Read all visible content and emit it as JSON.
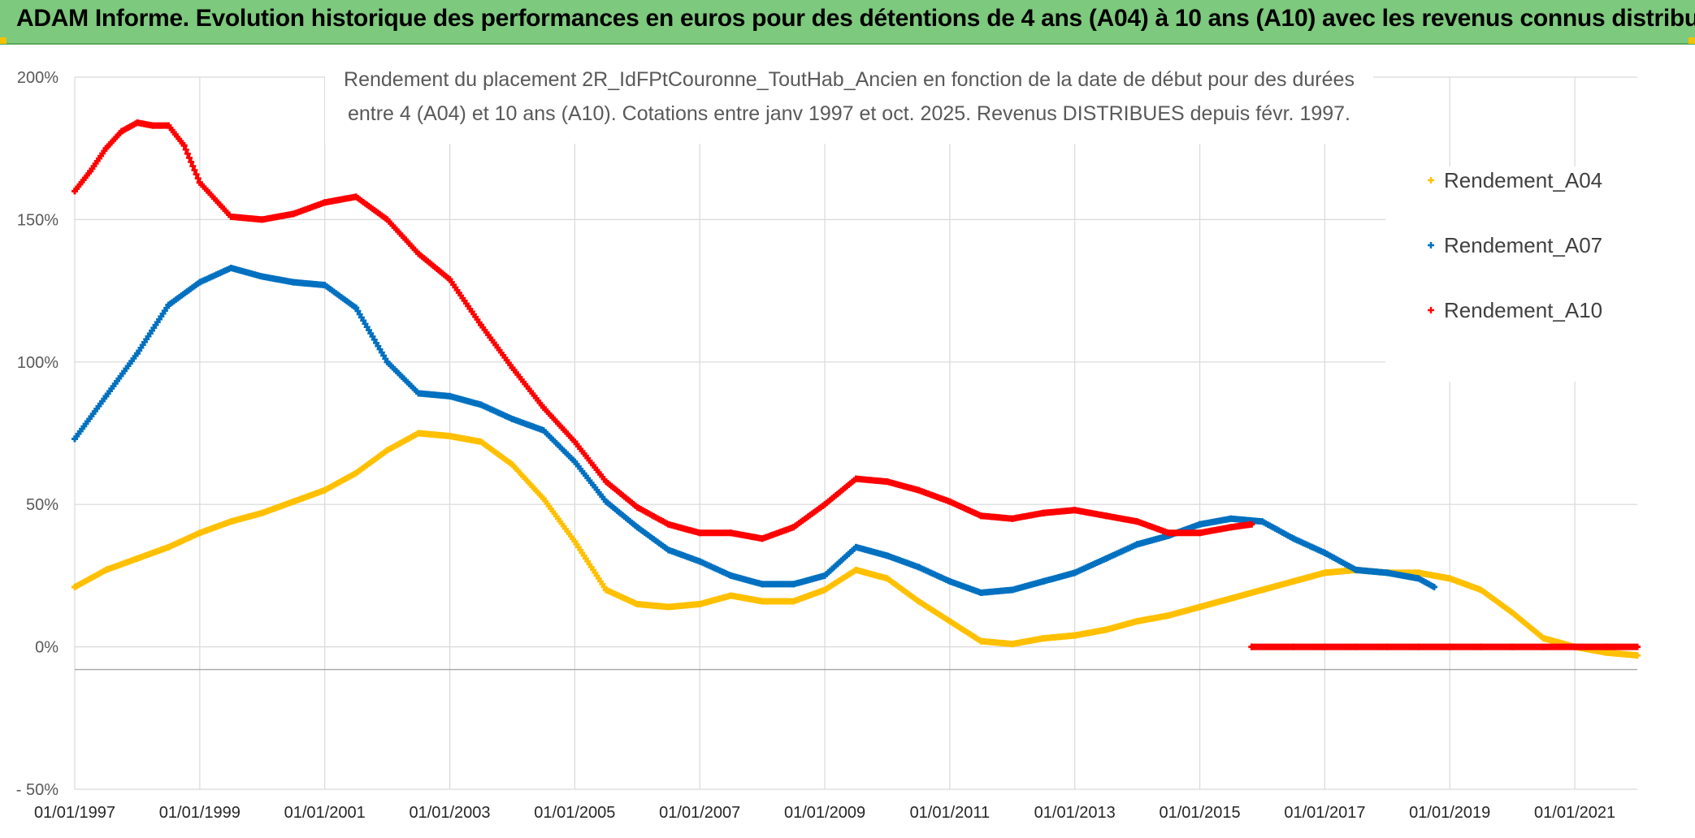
{
  "header": {
    "title": "ADAM Informe. Evolution historique des performances en euros pour des détentions de 4 ans (A04) à 10 ans (A10) avec les revenus connus distribués"
  },
  "chart_data": {
    "type": "scatter",
    "title_lines": [
      "Rendement du placement 2R_IdFPtCouronne_ToutHab_Ancien en fonction de la date de début pour des durées",
      "entre 4 (A04) et 10 ans (A10). Cotations entre janv 1997 et oct. 2025. Revenus DISTRIBUES depuis févr. 1997."
    ],
    "xlabel": "",
    "ylabel": "",
    "xlim": [
      1997.0,
      2022.0
    ],
    "ylim": [
      -50,
      200
    ],
    "y_ticks": [
      200,
      150,
      100,
      50,
      0,
      -50
    ],
    "y_tick_labels": [
      "200%",
      "150%",
      "100%",
      "50%",
      "0%",
      "- 50%"
    ],
    "x_ticks": [
      1997,
      1999,
      2001,
      2003,
      2005,
      2007,
      2009,
      2011,
      2013,
      2015,
      2017,
      2019,
      2021
    ],
    "x_tick_labels": [
      "01/01/1997",
      "01/01/1999",
      "01/01/2001",
      "01/01/2003",
      "01/01/2005",
      "01/01/2007",
      "01/01/2009",
      "01/01/2011",
      "01/01/2013",
      "01/01/2015",
      "01/01/2017",
      "01/01/2019",
      "01/01/2021"
    ],
    "grid": "both",
    "legend_position": "top-right",
    "series": [
      {
        "name": "Rendement_A04",
        "color": "#ffc000",
        "x": [
          1997.0,
          1997.5,
          1998.0,
          1998.5,
          1999.0,
          1999.5,
          2000.0,
          2000.5,
          2001.0,
          2001.5,
          2002.0,
          2002.5,
          2003.0,
          2003.5,
          2004.0,
          2004.5,
          2005.0,
          2005.5,
          2006.0,
          2006.5,
          2007.0,
          2007.5,
          2008.0,
          2008.5,
          2009.0,
          2009.5,
          2010.0,
          2010.5,
          2011.0,
          2011.5,
          2012.0,
          2012.5,
          2013.0,
          2013.5,
          2014.0,
          2014.5,
          2015.0,
          2015.5,
          2016.0,
          2016.5,
          2017.0,
          2017.5,
          2018.0,
          2018.5,
          2019.0,
          2019.5,
          2020.0,
          2020.5,
          2021.0,
          2021.5,
          2022.0
        ],
        "values": [
          21,
          27,
          31,
          35,
          40,
          44,
          47,
          51,
          55,
          61,
          69,
          75,
          74,
          72,
          64,
          52,
          37,
          20,
          15,
          14,
          15,
          18,
          16,
          16,
          20,
          27,
          24,
          16,
          9,
          2,
          1,
          3,
          4,
          6,
          9,
          11,
          14,
          17,
          20,
          23,
          26,
          27,
          26,
          26,
          24,
          20,
          12,
          3,
          0,
          -2,
          -3
        ]
      },
      {
        "name": "Rendement_A07",
        "color": "#0070c0",
        "x": [
          1997.0,
          1997.5,
          1998.0,
          1998.5,
          1999.0,
          1999.5,
          2000.0,
          2000.5,
          2001.0,
          2001.5,
          2002.0,
          2002.5,
          2003.0,
          2003.5,
          2004.0,
          2004.5,
          2005.0,
          2005.5,
          2006.0,
          2006.5,
          2007.0,
          2007.5,
          2008.0,
          2008.5,
          2009.0,
          2009.5,
          2010.0,
          2010.5,
          2011.0,
          2011.5,
          2012.0,
          2012.5,
          2013.0,
          2013.5,
          2014.0,
          2014.5,
          2015.0,
          2015.5,
          2016.0,
          2016.5,
          2017.0,
          2017.5,
          2018.0,
          2018.5,
          2018.75
        ],
        "values": [
          73,
          88,
          103,
          120,
          128,
          133,
          130,
          128,
          127,
          119,
          100,
          89,
          88,
          85,
          80,
          76,
          65,
          51,
          42,
          34,
          30,
          25,
          22,
          22,
          25,
          35,
          32,
          28,
          23,
          19,
          20,
          23,
          26,
          31,
          36,
          39,
          43,
          45,
          44,
          38,
          33,
          27,
          26,
          24,
          21
        ]
      },
      {
        "name": "Rendement_A10",
        "color": "#ff0000",
        "x": [
          1997.0,
          1997.25,
          1997.5,
          1997.75,
          1998.0,
          1998.25,
          1998.5,
          1998.75,
          1999.0,
          1999.5,
          2000.0,
          2000.5,
          2001.0,
          2001.5,
          2002.0,
          2002.5,
          2003.0,
          2003.5,
          2004.0,
          2004.5,
          2005.0,
          2005.5,
          2006.0,
          2006.5,
          2007.0,
          2007.5,
          2008.0,
          2008.5,
          2009.0,
          2009.5,
          2010.0,
          2010.5,
          2011.0,
          2011.5,
          2012.0,
          2012.5,
          2013.0,
          2013.5,
          2014.0,
          2014.5,
          2015.0,
          2015.5,
          2015.83
        ],
        "values": [
          160,
          167,
          175,
          181,
          184,
          183,
          183,
          176,
          163,
          151,
          150,
          152,
          156,
          158,
          150,
          138,
          129,
          113,
          98,
          84,
          72,
          58,
          49,
          43,
          40,
          40,
          38,
          42,
          50,
          59,
          58,
          55,
          51,
          46,
          45,
          47,
          48,
          46,
          44,
          40,
          40,
          42,
          43
        ]
      },
      {
        "name": "Rendement_A10",
        "color": "#ff0000",
        "x": [
          2015.83,
          2016.5,
          2017.0,
          2017.5,
          2018.0,
          2018.5,
          2019.0,
          2019.5,
          2020.0,
          2020.5,
          2021.0,
          2021.5,
          2022.0
        ],
        "values": [
          0,
          0,
          0,
          0,
          0,
          0,
          0,
          0,
          0,
          0,
          0,
          0,
          0
        ]
      }
    ],
    "legend": [
      "Rendement_A04",
      "Rendement_A07",
      "Rendement_A10"
    ]
  }
}
